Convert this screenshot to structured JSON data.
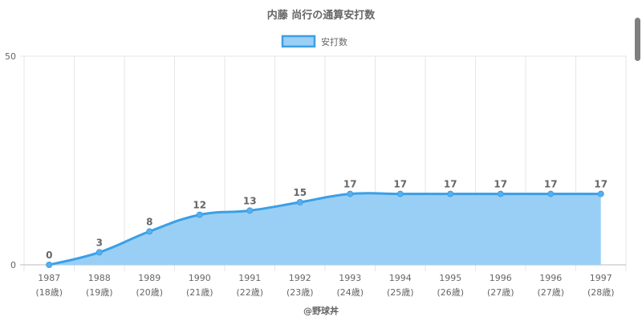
{
  "chart_data": {
    "type": "area",
    "title": "内藤 尚行の通算安打数",
    "categories": [
      "1987",
      "1988",
      "1989",
      "1990",
      "1991",
      "1992",
      "1993",
      "1994",
      "1995",
      "1996",
      "1996",
      "1997"
    ],
    "sub_labels": [
      "(18歳)",
      "(19歳)",
      "(20歳)",
      "(21歳)",
      "(22歳)",
      "(23歳)",
      "(24歳)",
      "(25歳)",
      "(26歳)",
      "(27歳)",
      "(27歳)",
      "(28歳)"
    ],
    "series": [
      {
        "name": "安打数",
        "values": [
          0,
          3,
          8,
          12,
          13,
          15,
          17,
          17,
          17,
          17,
          17,
          17
        ]
      }
    ],
    "ylim": [
      0,
      50
    ],
    "yticks": [
      0,
      50
    ],
    "grid": true,
    "legend": "top",
    "colors": {
      "line": "#3b9fe6",
      "fill": "#9acff5",
      "grid": "#e6e6e6",
      "text": "#666666"
    },
    "credit": "@野球丼"
  }
}
